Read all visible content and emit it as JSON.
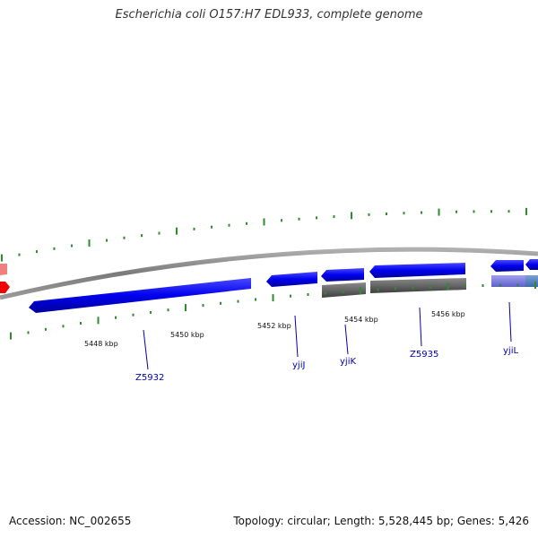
{
  "header": {
    "title": "Escherichia coli O157:H7 EDL933, complete genome"
  },
  "footer": {
    "accession": "Accession: NC_002655",
    "summary": "Topology: circular; Length: 5,528,445 bp; Genes: 5,426"
  },
  "scale_labels": [
    "5448 kbp",
    "5450 kbp",
    "5452 kbp",
    "5454 kbp",
    "5456 kbp"
  ],
  "gene_labels": [
    "Z5932",
    "yjiJ",
    "yjiK",
    "Z5935",
    "yjiL"
  ],
  "colors": {
    "forward_gene": "#0000ee",
    "rna_gene": "#ee0000",
    "pseudo_gene": "#666666",
    "light_gene": "#8080e0",
    "tick_green": "#2e8b2e",
    "backbone": "#888888"
  }
}
